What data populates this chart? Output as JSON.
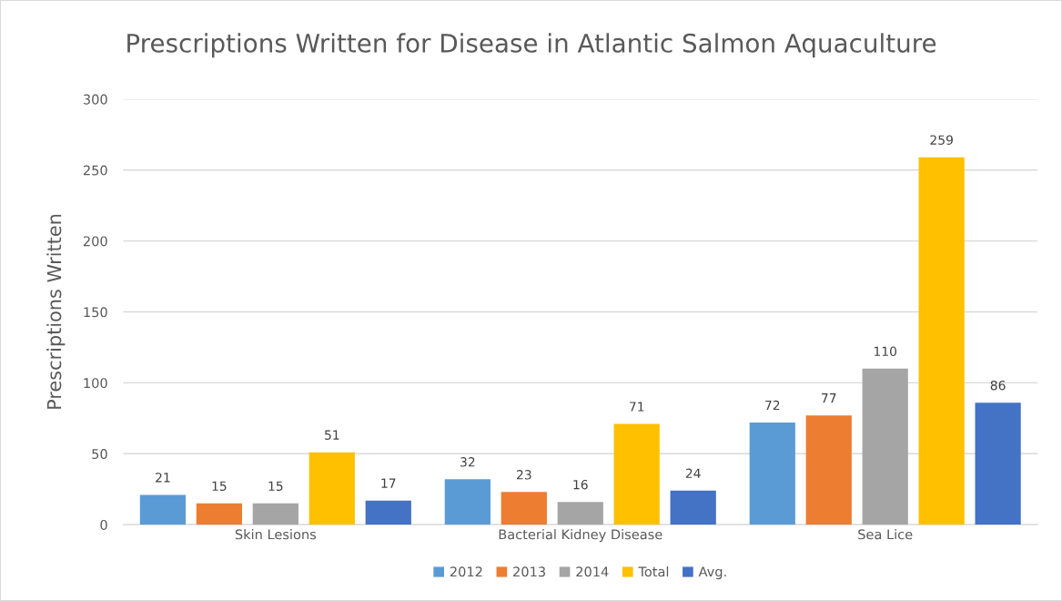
{
  "chart_data": {
    "type": "bar",
    "title": "Prescriptions Written for Disease in Atlantic Salmon Aquaculture",
    "ylabel": "Prescriptions Written",
    "categories": [
      "Skin Lesions",
      "Bacterial Kidney Disease",
      "Sea Lice"
    ],
    "series": [
      {
        "name": "2012",
        "color": "#5b9bd5",
        "values": [
          21,
          32,
          72
        ]
      },
      {
        "name": "2013",
        "color": "#ed7d31",
        "values": [
          15,
          23,
          77
        ]
      },
      {
        "name": "2014",
        "color": "#a5a5a5",
        "values": [
          15,
          16,
          110
        ]
      },
      {
        "name": "Total",
        "color": "#ffc000",
        "values": [
          51,
          71,
          259
        ]
      },
      {
        "name": "Avg.",
        "color": "#4472c4",
        "values": [
          17,
          24,
          86
        ]
      }
    ],
    "ylim": [
      0,
      300
    ],
    "yticks": [
      0,
      50,
      100,
      150,
      200,
      250,
      300
    ],
    "grid": "y",
    "legend": "bottom",
    "data_labels": true
  }
}
